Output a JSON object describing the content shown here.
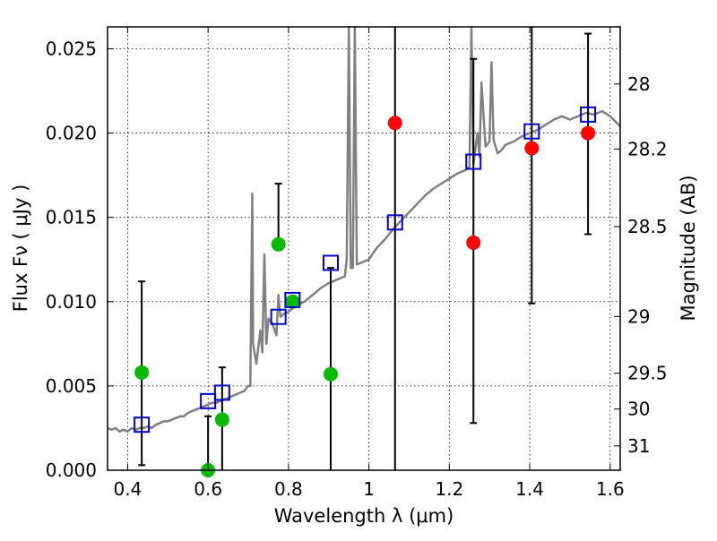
{
  "chart_data": {
    "type": "scatter",
    "xlabel": "Wavelength  λ (μm)",
    "ylabel": "Flux  Fν  ( μJy )",
    "y2label": "Magnitude (AB)",
    "xlim": [
      0.35,
      1.625
    ],
    "ylim": [
      0.0,
      0.0263
    ],
    "grid": true,
    "x_ticks": [
      {
        "v": 0.4,
        "label": "0.4"
      },
      {
        "v": 0.6,
        "label": "0.6"
      },
      {
        "v": 0.8,
        "label": "0.8"
      },
      {
        "v": 1.0,
        "label": "1"
      },
      {
        "v": 1.2,
        "label": "1.2"
      },
      {
        "v": 1.4,
        "label": "1.4"
      },
      {
        "v": 1.6,
        "label": "1.6"
      }
    ],
    "y_ticks": [
      {
        "v": 0.0,
        "label": "0.000"
      },
      {
        "v": 0.005,
        "label": "0.005"
      },
      {
        "v": 0.01,
        "label": "0.010"
      },
      {
        "v": 0.015,
        "label": "0.015"
      },
      {
        "v": 0.02,
        "label": "0.020"
      },
      {
        "v": 0.025,
        "label": "0.025"
      }
    ],
    "y2_ticks": [
      {
        "v": 28,
        "label": "28"
      },
      {
        "v": 28.2,
        "label": "28.2"
      },
      {
        "v": 28.5,
        "label": "28.5"
      },
      {
        "v": 29,
        "label": "29"
      },
      {
        "v": 29.5,
        "label": "29.5"
      },
      {
        "v": 30,
        "label": "30"
      },
      {
        "v": 31,
        "label": "31"
      }
    ],
    "model_spectrum": {
      "color": "#808080",
      "points": [
        [
          0.35,
          0.0025
        ],
        [
          0.36,
          0.0024
        ],
        [
          0.37,
          0.0025
        ],
        [
          0.38,
          0.0023
        ],
        [
          0.39,
          0.0024
        ],
        [
          0.4,
          0.0023
        ],
        [
          0.41,
          0.0025
        ],
        [
          0.42,
          0.0024
        ],
        [
          0.43,
          0.0025
        ],
        [
          0.44,
          0.0025
        ],
        [
          0.45,
          0.0026
        ],
        [
          0.46,
          0.0025
        ],
        [
          0.47,
          0.0027
        ],
        [
          0.48,
          0.0028
        ],
        [
          0.49,
          0.0029
        ],
        [
          0.5,
          0.0029
        ],
        [
          0.51,
          0.003
        ],
        [
          0.52,
          0.0031
        ],
        [
          0.53,
          0.0032
        ],
        [
          0.54,
          0.0032
        ],
        [
          0.55,
          0.0034
        ],
        [
          0.56,
          0.0035
        ],
        [
          0.57,
          0.0036
        ],
        [
          0.58,
          0.0037
        ],
        [
          0.59,
          0.0038
        ],
        [
          0.6,
          0.0039
        ],
        [
          0.61,
          0.004
        ],
        [
          0.62,
          0.004
        ],
        [
          0.63,
          0.0041
        ],
        [
          0.64,
          0.0042
        ],
        [
          0.65,
          0.0043
        ],
        [
          0.66,
          0.0044
        ],
        [
          0.67,
          0.0045
        ],
        [
          0.68,
          0.0046
        ],
        [
          0.69,
          0.0047
        ],
        [
          0.7,
          0.005
        ],
        [
          0.705,
          0.005
        ],
        [
          0.71,
          0.0164
        ],
        [
          0.712,
          0.0075
        ],
        [
          0.72,
          0.0063
        ],
        [
          0.73,
          0.0083
        ],
        [
          0.735,
          0.007
        ],
        [
          0.74,
          0.0128
        ],
        [
          0.745,
          0.0075
        ],
        [
          0.75,
          0.009
        ],
        [
          0.76,
          0.0087
        ],
        [
          0.77,
          0.008
        ],
        [
          0.775,
          0.0104
        ],
        [
          0.78,
          0.0091
        ],
        [
          0.79,
          0.0093
        ],
        [
          0.8,
          0.0094
        ],
        [
          0.82,
          0.0098
        ],
        [
          0.84,
          0.01
        ],
        [
          0.86,
          0.0104
        ],
        [
          0.88,
          0.0108
        ],
        [
          0.9,
          0.0111
        ],
        [
          0.92,
          0.0113
        ],
        [
          0.94,
          0.0115
        ],
        [
          0.945,
          0.0125
        ],
        [
          0.95,
          0.0263
        ],
        [
          0.955,
          0.012
        ],
        [
          0.96,
          0.012
        ],
        [
          0.965,
          0.0263
        ],
        [
          0.97,
          0.0122
        ],
        [
          0.98,
          0.0123
        ],
        [
          1.0,
          0.0125
        ],
        [
          1.02,
          0.0132
        ],
        [
          1.04,
          0.0137
        ],
        [
          1.06,
          0.0143
        ],
        [
          1.08,
          0.0148
        ],
        [
          1.1,
          0.0153
        ],
        [
          1.12,
          0.0158
        ],
        [
          1.14,
          0.0163
        ],
        [
          1.16,
          0.0167
        ],
        [
          1.18,
          0.017
        ],
        [
          1.2,
          0.0173
        ],
        [
          1.22,
          0.0176
        ],
        [
          1.24,
          0.0178
        ],
        [
          1.25,
          0.018
        ],
        [
          1.255,
          0.0263
        ],
        [
          1.26,
          0.0182
        ],
        [
          1.27,
          0.02
        ],
        [
          1.275,
          0.0186
        ],
        [
          1.28,
          0.023
        ],
        [
          1.29,
          0.0192
        ],
        [
          1.3,
          0.0195
        ],
        [
          1.305,
          0.0242
        ],
        [
          1.31,
          0.0196
        ],
        [
          1.32,
          0.0188
        ],
        [
          1.33,
          0.019
        ],
        [
          1.34,
          0.0193
        ],
        [
          1.36,
          0.0195
        ],
        [
          1.38,
          0.0198
        ],
        [
          1.4,
          0.02
        ],
        [
          1.42,
          0.0202
        ],
        [
          1.44,
          0.0205
        ],
        [
          1.46,
          0.0208
        ],
        [
          1.48,
          0.021
        ],
        [
          1.5,
          0.0208
        ],
        [
          1.52,
          0.021
        ],
        [
          1.54,
          0.0212
        ],
        [
          1.56,
          0.0211
        ],
        [
          1.58,
          0.0213
        ],
        [
          1.6,
          0.021
        ],
        [
          1.625,
          0.0204
        ]
      ]
    },
    "series": [
      {
        "marker": "circle",
        "color": "#00bb00",
        "points": [
          {
            "x": 0.435,
            "y": 0.0058,
            "yerr_lo": 0.0003,
            "yerr_hi": 0.0112
          },
          {
            "x": 0.6,
            "y": 0.0,
            "yerr_lo": 0.0,
            "yerr_hi": 0.0032
          },
          {
            "x": 0.635,
            "y": 0.003,
            "yerr_lo": 0.0,
            "yerr_hi": 0.0061
          },
          {
            "x": 0.775,
            "y": 0.0134,
            "yerr_lo": null,
            "yerr_hi": 0.017
          },
          {
            "x": 0.81,
            "y": 0.01,
            "yerr_lo": null,
            "yerr_hi": null
          },
          {
            "x": 0.905,
            "y": 0.0057,
            "yerr_lo": 0.0,
            "yerr_hi": 0.012
          }
        ]
      },
      {
        "marker": "circle",
        "color": "#ff0000",
        "points": [
          {
            "x": 1.065,
            "y": 0.0206,
            "yerr_lo": 0.0,
            "yerr_hi": 0.0263
          },
          {
            "x": 1.26,
            "y": 0.0135,
            "yerr_lo": 0.0028,
            "yerr_hi": 0.0244
          },
          {
            "x": 1.405,
            "y": 0.0191,
            "yerr_lo": 0.0099,
            "yerr_hi": 0.0263
          },
          {
            "x": 1.545,
            "y": 0.02,
            "yerr_lo": 0.014,
            "yerr_hi": 0.0259
          }
        ]
      },
      {
        "marker": "square",
        "color": "#0000cc",
        "points": [
          {
            "x": 0.435,
            "y": 0.0027
          },
          {
            "x": 0.6,
            "y": 0.0041
          },
          {
            "x": 0.635,
            "y": 0.0046
          },
          {
            "x": 0.775,
            "y": 0.0091
          },
          {
            "x": 0.81,
            "y": 0.0101
          },
          {
            "x": 0.905,
            "y": 0.0123
          },
          {
            "x": 1.065,
            "y": 0.0147
          },
          {
            "x": 1.26,
            "y": 0.0183
          },
          {
            "x": 1.405,
            "y": 0.0201
          },
          {
            "x": 1.545,
            "y": 0.0211
          }
        ]
      }
    ]
  }
}
